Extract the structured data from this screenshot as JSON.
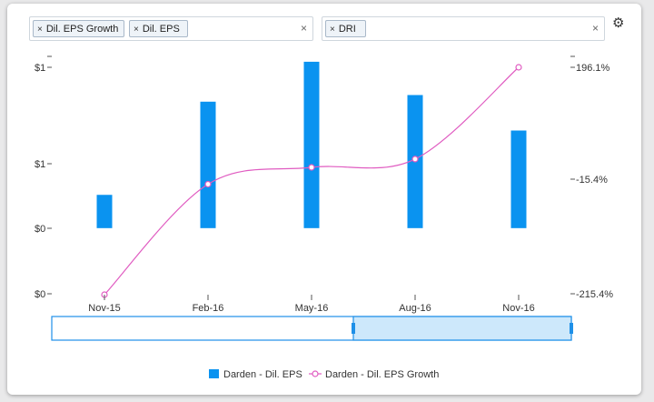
{
  "filters": {
    "metrics": [
      {
        "label": "Dil. EPS Growth"
      },
      {
        "label": "Dil. EPS"
      }
    ],
    "tickers": [
      {
        "label": "DRI"
      }
    ],
    "chip_remove_glyph": "×",
    "clear_glyph": "×",
    "settings_icon": "gear-icon"
  },
  "chart_data": {
    "type": "bar",
    "categories": [
      "Nov-15",
      "Feb-16",
      "May-16",
      "Aug-16",
      "Nov-16"
    ],
    "series": [
      {
        "name": "Darden - Dil. EPS",
        "type": "bar",
        "axis": "left",
        "color": "#0a93f0",
        "values": [
          0.3,
          1.14,
          1.5,
          1.2,
          0.88
        ]
      },
      {
        "name": "Darden - Dil. EPS Growth",
        "type": "line",
        "axis": "right",
        "color": "#e05cc1",
        "values": [
          -215.4,
          -15.4,
          15,
          30,
          196.1
        ]
      }
    ],
    "y_left": {
      "tick_labels": [
        "$1",
        "$1",
        "$0",
        "$0"
      ],
      "ylim": [
        -0.6,
        1.45
      ]
    },
    "y_right": {
      "tick_labels": [
        "196.1%",
        "-15.4%",
        "-215.4%"
      ],
      "ylim": [
        -215.4,
        196.1
      ]
    },
    "grid": false,
    "legend_position": "bottom-center",
    "navigator": {
      "selected_from": "May-16",
      "selected_to": "Nov-16"
    }
  }
}
